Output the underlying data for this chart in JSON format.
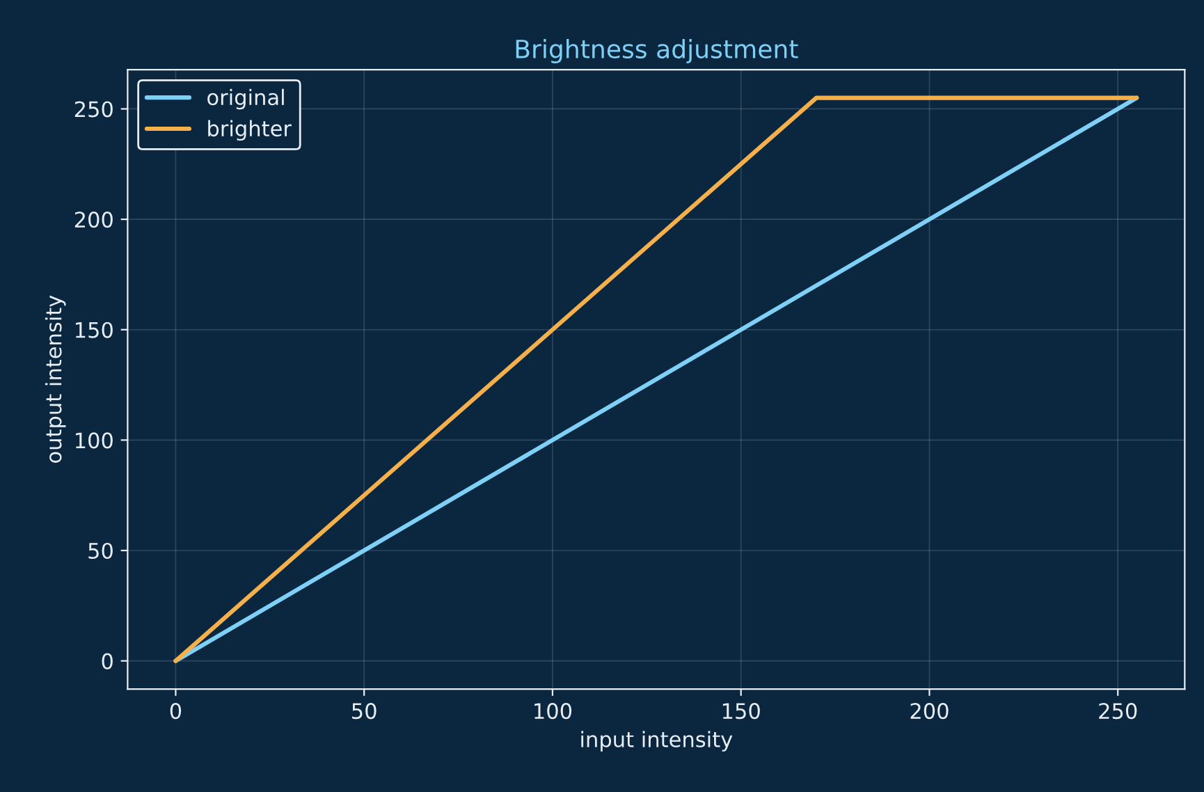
{
  "chart_data": {
    "type": "line",
    "title": "Brightness adjustment",
    "xlabel": "input intensity",
    "ylabel": "output intensity",
    "series": [
      {
        "name": "original",
        "color": "#7fd0f7",
        "x": [
          0,
          255
        ],
        "values": [
          0,
          255
        ]
      },
      {
        "name": "brighter",
        "color": "#f5b04c",
        "x": [
          0,
          170,
          255
        ],
        "values": [
          0,
          255,
          255
        ]
      }
    ],
    "xlim": [
      -12.75,
      267.75
    ],
    "ylim": [
      -12.75,
      267.75
    ],
    "xticks": [
      0,
      50,
      100,
      150,
      200,
      250
    ],
    "yticks": [
      0,
      50,
      100,
      150,
      200,
      250
    ],
    "grid": true,
    "legend": "top left",
    "marker": "none",
    "line_style": "solid"
  }
}
